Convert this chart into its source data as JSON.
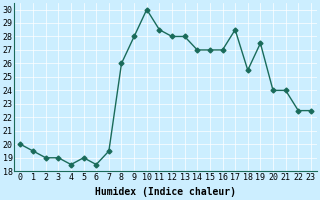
{
  "x": [
    0,
    1,
    2,
    3,
    4,
    5,
    6,
    7,
    8,
    9,
    10,
    11,
    12,
    13,
    14,
    15,
    16,
    17,
    18,
    19,
    20,
    21,
    22,
    23
  ],
  "y": [
    20,
    19.5,
    19,
    19,
    18.5,
    19,
    18.5,
    19.5,
    26,
    28,
    30,
    28.5,
    28,
    28,
    27,
    27,
    27,
    28.5,
    25.5,
    27.5,
    24,
    24,
    22.5,
    22.5
  ],
  "line_color": "#1a6b5a",
  "marker": "D",
  "marker_size": 2.5,
  "bg_color": "#cceeff",
  "grid_color": "#ffffff",
  "xlabel": "Humidex (Indice chaleur)",
  "xlim": [
    -0.5,
    23.5
  ],
  "ylim": [
    18,
    30.5
  ],
  "yticks": [
    18,
    19,
    20,
    21,
    22,
    23,
    24,
    25,
    26,
    27,
    28,
    29,
    30
  ],
  "xticks": [
    0,
    1,
    2,
    3,
    4,
    5,
    6,
    7,
    8,
    9,
    10,
    11,
    12,
    13,
    14,
    15,
    16,
    17,
    18,
    19,
    20,
    21,
    22,
    23
  ],
  "xlabel_fontsize": 7,
  "tick_fontsize": 6,
  "line_width": 1.0
}
